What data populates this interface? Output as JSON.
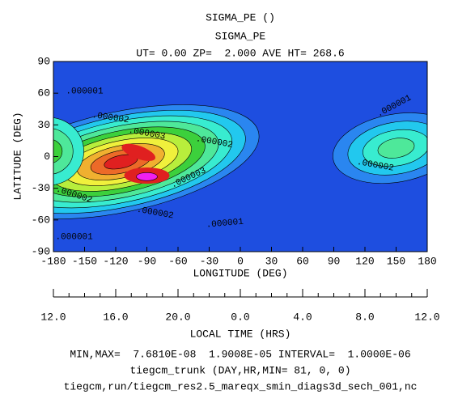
{
  "chart_data": {
    "type": "contour",
    "title": "SIGMA_PE ()",
    "subtitle": "SIGMA_PE",
    "header": "UT= 0.00 ZP=  2.000 AVE HT= 268.6",
    "x_label": "LONGITUDE (DEG)",
    "y_label": "LATITUDE (DEG)",
    "xlim": [
      -180,
      180
    ],
    "xticks": [
      -180,
      -150,
      -120,
      -90,
      -60,
      -30,
      0,
      30,
      60,
      90,
      120,
      150,
      180
    ],
    "ylim": [
      -90,
      90
    ],
    "yticks": [
      -90,
      -60,
      -30,
      0,
      30,
      60,
      90
    ],
    "local_time_label": "LOCAL TIME (HRS)",
    "local_time_ticks": [
      "12.0",
      "16.0",
      "20.0",
      "0.0",
      "4.0",
      "8.0",
      "12.0"
    ],
    "contour_labels": [
      ".000001",
      ".000002",
      ".000003",
      ".000002",
      ".000001",
      ".000002",
      ".000003",
      ".000002",
      ".000002",
      ".000001",
      ".000001"
    ],
    "footer": [
      "MIN,MAX=  7.6810E-08  1.9008E-05 INTERVAL=  1.0000E-06",
      "tiegcm_trunk (DAY,HR,MIN= 81, 0, 0)",
      "tiegcm,run/tiegcm_res2.5_mareqx_smin_diags3d_sech_001,nc"
    ]
  }
}
